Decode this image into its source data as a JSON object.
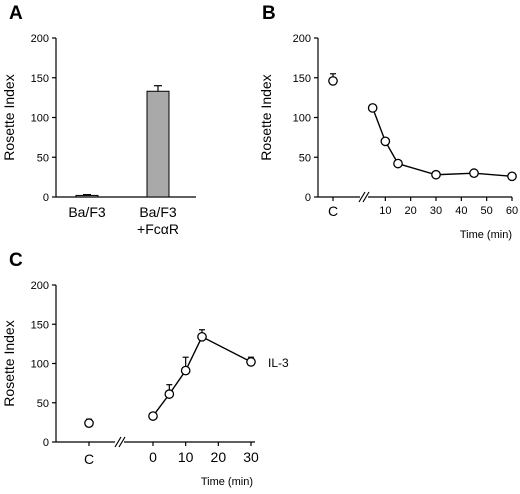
{
  "chart_data": [
    {
      "panel": "A",
      "type": "bar",
      "categories": [
        [
          "Ba/F3"
        ],
        [
          "Ba/F3",
          "+FcαR"
        ]
      ],
      "values": [
        2,
        133
      ],
      "errors": [
        1,
        7
      ],
      "bar_colors": [
        "#a9a9a9",
        "#a9a9a9"
      ],
      "ylabel": "Rosette Index",
      "ylim": [
        0,
        200
      ],
      "yticks": [
        0,
        50,
        100,
        150,
        200
      ]
    },
    {
      "panel": "B",
      "type": "line",
      "ylabel": "Rosette Index",
      "xlabel": "Time (min)",
      "ylim": [
        0,
        200
      ],
      "yticks": [
        0,
        50,
        100,
        150,
        200
      ],
      "xlim": [
        0,
        60
      ],
      "xticks": [
        10,
        20,
        30,
        40,
        50,
        60
      ],
      "control": {
        "label": "C",
        "value": 146,
        "error": 9
      },
      "series": [
        {
          "x": [
            5,
            10,
            15,
            30,
            45,
            60
          ],
          "values": [
            112,
            70,
            42,
            28,
            30,
            26
          ],
          "errors": [
            0,
            0,
            0,
            0,
            0,
            0
          ]
        }
      ]
    },
    {
      "panel": "C",
      "type": "line",
      "ylabel": "Rosette Index",
      "xlabel": "Time (min)",
      "ylim": [
        0,
        200
      ],
      "yticks": [
        0,
        50,
        100,
        150,
        200
      ],
      "xlim": [
        0,
        30
      ],
      "xticks": [
        0,
        10,
        20,
        30
      ],
      "control": {
        "label": "C",
        "value": 24,
        "error": 5
      },
      "series": [
        {
          "name": "IL-3",
          "x": [
            0,
            5,
            10,
            15,
            30
          ],
          "values": [
            33,
            61,
            91,
            134,
            102
          ],
          "errors": [
            4,
            12,
            17,
            9,
            6
          ]
        }
      ]
    }
  ]
}
